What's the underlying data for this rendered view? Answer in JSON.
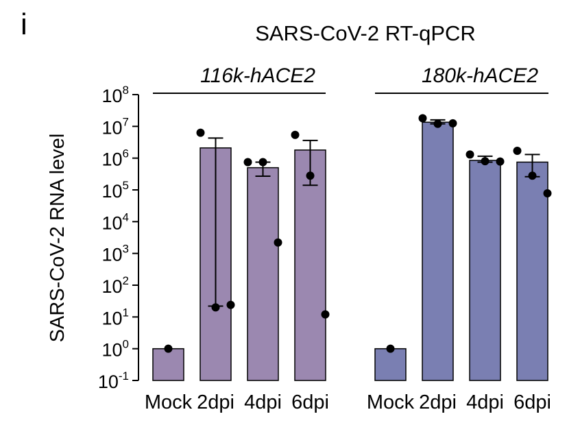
{
  "panel_letter": "i",
  "colors": {
    "series_116k": "#9b88b0",
    "series_180k": "#7a7fb2",
    "point": "#000000",
    "axis": "#000000"
  },
  "chart_data": {
    "type": "bar",
    "title": "SARS-CoV-2 RT-qPCR",
    "ylabel": "SARS-CoV-2 RNA level",
    "xlabel": "",
    "yscale": "log10",
    "ylim": [
      0.1,
      100000000
    ],
    "yticks": [
      {
        "value": 0.1,
        "base": "10",
        "exp": "-1"
      },
      {
        "value": 1,
        "base": "10",
        "exp": "0"
      },
      {
        "value": 10,
        "base": "10",
        "exp": "1"
      },
      {
        "value": 100,
        "base": "10",
        "exp": "2"
      },
      {
        "value": 1000,
        "base": "10",
        "exp": "3"
      },
      {
        "value": 10000,
        "base": "10",
        "exp": "4"
      },
      {
        "value": 100000,
        "base": "10",
        "exp": "5"
      },
      {
        "value": 1000000,
        "base": "10",
        "exp": "6"
      },
      {
        "value": 10000000,
        "base": "10",
        "exp": "7"
      },
      {
        "value": 100000000,
        "base": "10",
        "exp": "8"
      }
    ],
    "groups": [
      {
        "name": "116k-hACE2",
        "color_key": "series_116k",
        "bars": [
          {
            "category": "Mock",
            "mean": 1,
            "err_low": null,
            "err_high": null,
            "points": [
              1
            ]
          },
          {
            "category": "2dpi",
            "mean": 2100000,
            "err_low": 22,
            "err_high": 4300000,
            "points": [
              6300000,
              20,
              24
            ]
          },
          {
            "category": "4dpi",
            "mean": 500000,
            "err_low": 270000,
            "err_high": 750000,
            "points": [
              750000,
              750000,
              2200
            ]
          },
          {
            "category": "6dpi",
            "mean": 1800000,
            "err_low": 140000,
            "err_high": 3600000,
            "points": [
              5400000,
              280000,
              12
            ]
          }
        ]
      },
      {
        "name": "180k-hACE2",
        "color_key": "series_180k",
        "bars": [
          {
            "category": "Mock",
            "mean": 1,
            "err_low": null,
            "err_high": null,
            "points": [
              1
            ]
          },
          {
            "category": "2dpi",
            "mean": 13500000,
            "err_low": 12000000,
            "err_high": 16000000,
            "points": [
              18000000,
              12000000,
              12500000
            ]
          },
          {
            "category": "4dpi",
            "mean": 850000,
            "err_low": 750000,
            "err_high": 1150000,
            "points": [
              1300000,
              800000,
              780000
            ]
          },
          {
            "category": "6dpi",
            "mean": 750000,
            "err_low": 260000,
            "err_high": 1300000,
            "points": [
              1700000,
              280000,
              78000
            ]
          }
        ]
      }
    ]
  }
}
